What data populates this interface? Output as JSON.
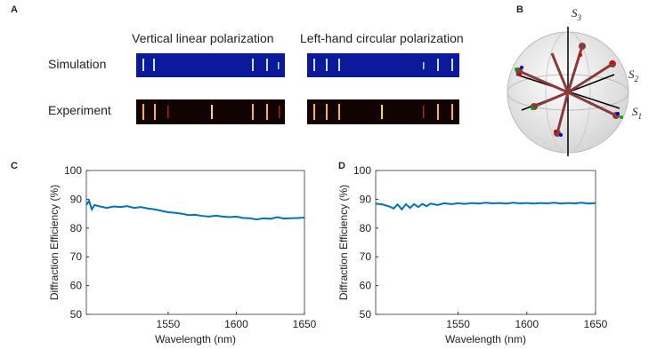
{
  "panel_a": {
    "label": "A",
    "columns": [
      "Vertical linear polarization",
      "Left-hand circular polarization"
    ],
    "rows": [
      "Simulation",
      "Experiment"
    ]
  },
  "panel_b": {
    "label": "B",
    "axes": [
      {
        "symbol": "S",
        "index": "3"
      },
      {
        "symbol": "S",
        "index": "2"
      },
      {
        "symbol": "S",
        "index": "1"
      }
    ]
  },
  "chart_data": [
    {
      "type": "line",
      "panel_label": "C",
      "xlabel": "Wavelength (nm)",
      "ylabel": "Diffraction Efficiency (%)",
      "color": "#0072bd",
      "x": [
        1490,
        1492,
        1494,
        1496,
        1500,
        1505,
        1510,
        1515,
        1520,
        1525,
        1530,
        1535,
        1540,
        1545,
        1550,
        1555,
        1560,
        1565,
        1570,
        1575,
        1580,
        1585,
        1590,
        1595,
        1600,
        1605,
        1610,
        1615,
        1620,
        1625,
        1630,
        1635,
        1640,
        1645,
        1650
      ],
      "values": [
        88,
        89.5,
        86.5,
        88,
        87.5,
        87,
        87.5,
        87.3,
        87.6,
        87,
        87.3,
        86.8,
        86.5,
        86,
        85.5,
        85.3,
        85,
        84.5,
        84.6,
        84.2,
        84,
        84.3,
        84,
        83.8,
        84,
        83.5,
        83.4,
        83,
        83.4,
        83.2,
        83.8,
        83.3,
        83.4,
        83.5,
        83.6
      ],
      "xlim": [
        1490,
        1650
      ],
      "ylim": [
        50,
        100
      ],
      "xticks": [
        1550,
        1600,
        1650
      ],
      "yticks": [
        50,
        60,
        70,
        80,
        90,
        100
      ]
    },
    {
      "type": "line",
      "panel_label": "D",
      "xlabel": "Wavelength (nm)",
      "ylabel": "Diffraction Efficiency (%)",
      "color": "#0072bd",
      "x": [
        1490,
        1495,
        1500,
        1503,
        1506,
        1509,
        1512,
        1515,
        1518,
        1521,
        1524,
        1527,
        1530,
        1535,
        1540,
        1545,
        1550,
        1555,
        1560,
        1565,
        1570,
        1575,
        1580,
        1585,
        1590,
        1595,
        1600,
        1605,
        1610,
        1615,
        1620,
        1625,
        1630,
        1635,
        1640,
        1645,
        1650
      ],
      "values": [
        88.5,
        88.2,
        87.5,
        86.8,
        88.2,
        86.5,
        88.3,
        87,
        88.3,
        87.3,
        88.4,
        87.6,
        88.5,
        88,
        88.6,
        88.3,
        88.6,
        88.4,
        88.7,
        88.5,
        88.8,
        88.6,
        88.7,
        88.5,
        88.8,
        88.6,
        88.7,
        88.5,
        88.7,
        88.6,
        88.8,
        88.5,
        88.7,
        88.6,
        88.8,
        88.5,
        88.7
      ],
      "xlim": [
        1490,
        1650
      ],
      "ylim": [
        50,
        100
      ],
      "xticks": [
        1550,
        1600,
        1650
      ],
      "yticks": [
        50,
        60,
        70,
        80,
        90,
        100
      ]
    }
  ]
}
